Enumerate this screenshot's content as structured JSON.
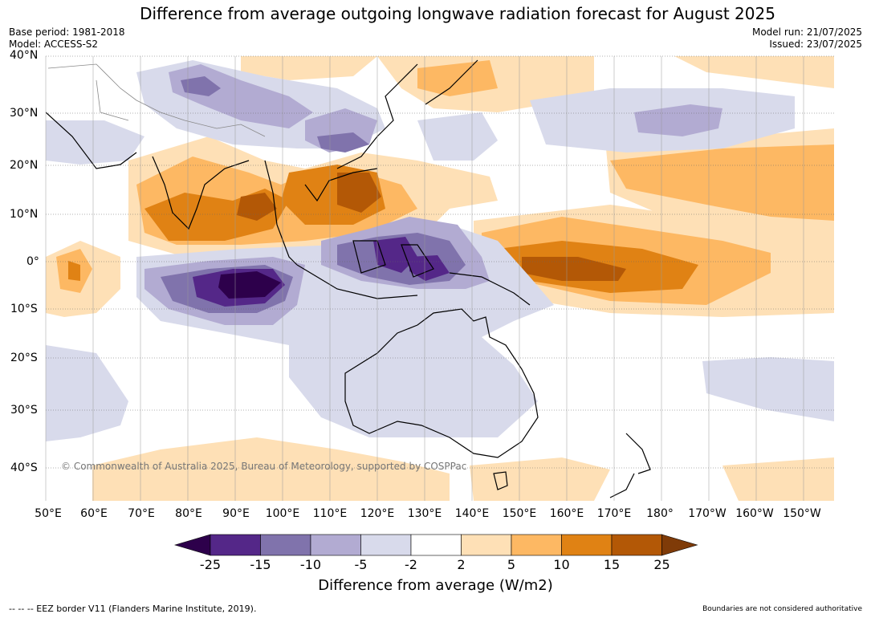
{
  "title": "Difference from average outgoing longwave radiation forecast for August 2025",
  "meta_left": {
    "base_period": "Base period: 1981-2018",
    "model": "Model: ACCESS-S2"
  },
  "meta_right": {
    "model_run": "Model run: 21/07/2025",
    "issued": "Issued: 23/07/2025"
  },
  "map": {
    "lat_labels": [
      "40°N",
      "30°N",
      "20°N",
      "10°N",
      "0°",
      "10°S",
      "20°S",
      "30°S",
      "40°S"
    ],
    "lon_labels": [
      "50°E",
      "60°E",
      "70°E",
      "80°E",
      "90°E",
      "100°E",
      "110°E",
      "120°E",
      "130°E",
      "140°E",
      "150°E",
      "160°E",
      "170°E",
      "180°",
      "170°W",
      "160°W",
      "150°W"
    ],
    "copyright": "© Commonwealth of Australia 2025, Bureau of Meteorology, supported by COSPPac"
  },
  "legend": {
    "ticks": [
      "-25",
      "-15",
      "-10",
      "-5",
      "-2",
      "2",
      "5",
      "10",
      "15",
      "25"
    ],
    "colors": [
      "#2d004b",
      "#542788",
      "#8073ac",
      "#b2abd2",
      "#d8daeb",
      "#ffffff",
      "#fee0b6",
      "#fdb863",
      "#e08214",
      "#b35806",
      "#7f3b08"
    ],
    "title": "Difference from average (W/m2)"
  },
  "footer": {
    "eez": "-- -- -- EEZ border V11 (Flanders Marine Institute, 2019).",
    "disclaimer": "Boundaries are not considered authoritative"
  }
}
